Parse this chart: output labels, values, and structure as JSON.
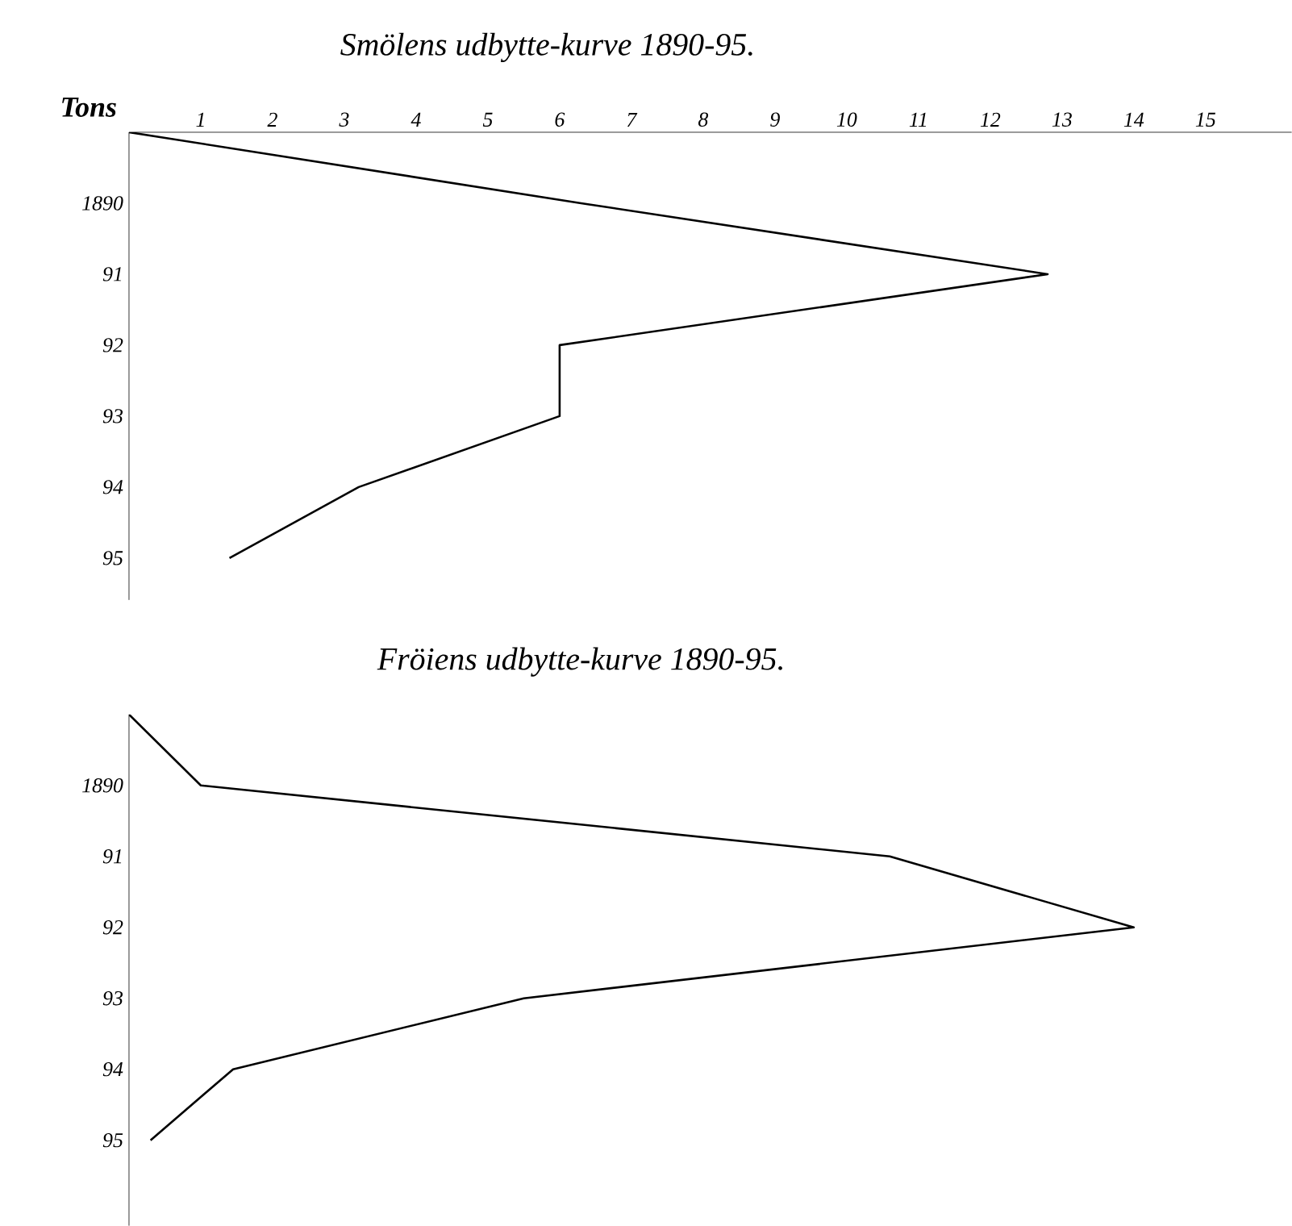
{
  "chart_data": [
    {
      "type": "line",
      "orientation": "horizontal",
      "title": "Smölens udbytte-kurve 1890-95.",
      "xlabel": "Tons",
      "categories": [
        null,
        "1890",
        "91",
        "92",
        "93",
        "94",
        "95"
      ],
      "series": [
        {
          "color": "#000000",
          "values": [
            0,
            6.3,
            12.8,
            6.0,
            6.0,
            3.2,
            1.4
          ]
        }
      ],
      "xlim": [
        0,
        16.2
      ],
      "xticks": [
        1,
        2,
        3,
        4,
        5,
        6,
        7,
        8,
        9,
        10,
        11,
        12,
        13,
        14,
        15
      ]
    },
    {
      "type": "line",
      "orientation": "horizontal",
      "title": "Fröiens udbytte-kurve 1890-95.",
      "tick_labels": "y",
      "categories": [
        null,
        "1890",
        "91",
        "92",
        "93",
        "94",
        "95"
      ],
      "series": [
        {
          "color": "#000000",
          "values": [
            0,
            1.0,
            10.6,
            14.0,
            5.5,
            1.45,
            0.3
          ]
        }
      ],
      "xlim": [
        0,
        15
      ],
      "xticks": [
        1,
        2,
        3,
        4,
        5,
        6,
        7,
        8,
        9,
        10,
        11,
        12,
        13,
        14,
        15
      ]
    }
  ]
}
